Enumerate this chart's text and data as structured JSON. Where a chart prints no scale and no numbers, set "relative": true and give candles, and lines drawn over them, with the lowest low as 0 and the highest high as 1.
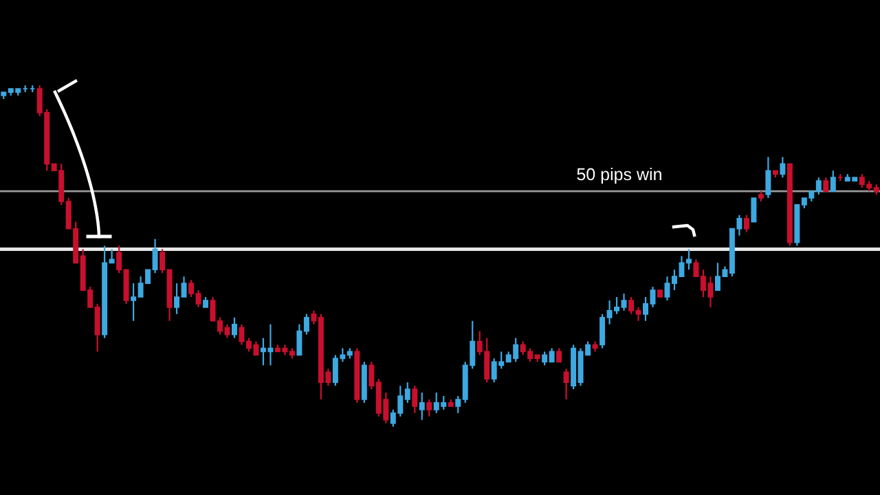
{
  "chart_data": {
    "type": "candlestick",
    "relative": true,
    "categories": [
      null,
      null,
      null,
      null,
      null,
      null,
      null,
      null,
      null,
      null,
      null,
      null,
      null,
      null,
      null,
      null,
      null,
      null,
      null,
      null,
      null,
      null,
      null,
      null,
      null,
      null,
      null,
      null,
      null,
      null,
      null,
      null,
      null,
      null,
      null,
      null,
      null,
      null,
      null,
      null,
      null,
      null,
      null,
      null,
      null,
      null,
      null,
      null,
      null,
      null,
      null,
      null,
      null,
      null,
      null,
      null,
      null,
      null,
      null,
      null,
      null,
      null,
      null,
      null,
      null,
      null,
      null,
      null,
      null,
      null,
      null,
      null,
      null,
      null,
      null,
      null,
      null,
      null,
      null,
      null,
      null,
      null,
      null,
      null,
      null,
      null,
      null,
      null,
      null,
      null,
      null,
      null,
      null,
      null,
      null,
      null,
      null,
      null,
      null,
      null,
      null,
      null,
      null,
      null,
      null,
      null,
      null,
      null,
      null,
      null,
      null,
      null,
      null,
      null,
      null,
      null,
      null,
      null,
      null,
      null,
      null,
      null
    ],
    "ohlc": [
      [
        0.97,
        0.98,
        0.96,
        0.98
      ],
      [
        0.98,
        0.99,
        0.97,
        0.99
      ],
      [
        0.98,
        0.99,
        0.97,
        0.99
      ],
      [
        0.99,
        1.0,
        0.98,
        0.99
      ],
      [
        0.99,
        1.0,
        0.98,
        0.99
      ],
      [
        0.99,
        1.0,
        0.91,
        0.92
      ],
      [
        0.92,
        0.93,
        0.75,
        0.77
      ],
      [
        0.77,
        0.77,
        0.75,
        0.75
      ],
      [
        0.75,
        0.77,
        0.65,
        0.66
      ],
      [
        0.66,
        0.67,
        0.58,
        0.58
      ],
      [
        0.58,
        0.6,
        0.48,
        0.48
      ],
      [
        0.5,
        0.52,
        0.4,
        0.4
      ],
      [
        0.4,
        0.41,
        0.35,
        0.35
      ],
      [
        0.35,
        0.36,
        0.22,
        0.27
      ],
      [
        0.27,
        0.53,
        0.26,
        0.48
      ],
      [
        0.48,
        0.52,
        0.48,
        0.49
      ],
      [
        0.51,
        0.53,
        0.45,
        0.46
      ],
      [
        0.46,
        0.46,
        0.36,
        0.37
      ],
      [
        0.37,
        0.42,
        0.31,
        0.38
      ],
      [
        0.38,
        0.44,
        0.38,
        0.42
      ],
      [
        0.42,
        0.46,
        0.42,
        0.46
      ],
      [
        0.46,
        0.55,
        0.45,
        0.52
      ],
      [
        0.51,
        0.52,
        0.45,
        0.46
      ],
      [
        0.46,
        0.46,
        0.31,
        0.35
      ],
      [
        0.35,
        0.42,
        0.33,
        0.38
      ],
      [
        0.38,
        0.44,
        0.38,
        0.42
      ],
      [
        0.42,
        0.43,
        0.38,
        0.39
      ],
      [
        0.39,
        0.4,
        0.35,
        0.36
      ],
      [
        0.35,
        0.38,
        0.35,
        0.37
      ],
      [
        0.37,
        0.38,
        0.31,
        0.31
      ],
      [
        0.31,
        0.32,
        0.27,
        0.28
      ],
      [
        0.29,
        0.3,
        0.26,
        0.27
      ],
      [
        0.27,
        0.32,
        0.26,
        0.3
      ],
      [
        0.29,
        0.3,
        0.24,
        0.25
      ],
      [
        0.25,
        0.26,
        0.22,
        0.23
      ],
      [
        0.24,
        0.25,
        0.21,
        0.21
      ],
      [
        0.22,
        0.26,
        0.18,
        0.23
      ],
      [
        0.22,
        0.3,
        0.18,
        0.23
      ],
      [
        0.23,
        0.24,
        0.22,
        0.22
      ],
      [
        0.23,
        0.24,
        0.21,
        0.22
      ],
      [
        0.22,
        0.23,
        0.2,
        0.21
      ],
      [
        0.21,
        0.3,
        0.21,
        0.28
      ],
      [
        0.28,
        0.33,
        0.27,
        0.32
      ],
      [
        0.33,
        0.34,
        0.3,
        0.31
      ],
      [
        0.32,
        0.33,
        0.08,
        0.13
      ],
      [
        0.16,
        0.17,
        0.12,
        0.13
      ],
      [
        0.13,
        0.21,
        0.12,
        0.2
      ],
      [
        0.2,
        0.23,
        0.19,
        0.21
      ],
      [
        0.21,
        0.23,
        0.2,
        0.22
      ],
      [
        0.22,
        0.23,
        0.07,
        0.08
      ],
      [
        0.08,
        0.19,
        0.07,
        0.18
      ],
      [
        0.18,
        0.19,
        0.11,
        0.12
      ],
      [
        0.13,
        0.14,
        0.03,
        0.04
      ],
      [
        0.08,
        0.1,
        0.01,
        0.02
      ],
      [
        0.01,
        0.05,
        0.0,
        0.04
      ],
      [
        0.04,
        0.12,
        0.03,
        0.09
      ],
      [
        0.08,
        0.13,
        0.07,
        0.11
      ],
      [
        0.11,
        0.12,
        0.04,
        0.06
      ],
      [
        0.05,
        0.1,
        0.02,
        0.07
      ],
      [
        0.07,
        0.08,
        0.03,
        0.05
      ],
      [
        0.05,
        0.1,
        0.04,
        0.07
      ],
      [
        0.06,
        0.09,
        0.05,
        0.07
      ],
      [
        0.07,
        0.08,
        0.06,
        0.06
      ],
      [
        0.06,
        0.09,
        0.04,
        0.08
      ],
      [
        0.08,
        0.19,
        0.07,
        0.18
      ],
      [
        0.18,
        0.31,
        0.17,
        0.25
      ],
      [
        0.25,
        0.28,
        0.21,
        0.22
      ],
      [
        0.22,
        0.26,
        0.13,
        0.14
      ],
      [
        0.14,
        0.2,
        0.13,
        0.19
      ],
      [
        0.18,
        0.22,
        0.17,
        0.19
      ],
      [
        0.19,
        0.22,
        0.19,
        0.21
      ],
      [
        0.2,
        0.26,
        0.19,
        0.24
      ],
      [
        0.24,
        0.25,
        0.21,
        0.22
      ],
      [
        0.22,
        0.23,
        0.19,
        0.2
      ],
      [
        0.21,
        0.21,
        0.19,
        0.2
      ],
      [
        0.19,
        0.22,
        0.18,
        0.21
      ],
      [
        0.19,
        0.23,
        0.19,
        0.22
      ],
      [
        0.22,
        0.23,
        0.19,
        0.19
      ],
      [
        0.16,
        0.17,
        0.08,
        0.13
      ],
      [
        0.12,
        0.24,
        0.11,
        0.23
      ],
      [
        0.13,
        0.23,
        0.12,
        0.22
      ],
      [
        0.21,
        0.25,
        0.21,
        0.24
      ],
      [
        0.24,
        0.25,
        0.22,
        0.23
      ],
      [
        0.24,
        0.33,
        0.23,
        0.32
      ],
      [
        0.32,
        0.37,
        0.3,
        0.34
      ],
      [
        0.34,
        0.38,
        0.33,
        0.35
      ],
      [
        0.35,
        0.39,
        0.34,
        0.37
      ],
      [
        0.37,
        0.38,
        0.33,
        0.34
      ],
      [
        0.34,
        0.35,
        0.31,
        0.33
      ],
      [
        0.33,
        0.38,
        0.31,
        0.36
      ],
      [
        0.36,
        0.41,
        0.35,
        0.4
      ],
      [
        0.4,
        0.4,
        0.38,
        0.38
      ],
      [
        0.38,
        0.44,
        0.37,
        0.42
      ],
      [
        0.42,
        0.46,
        0.4,
        0.44
      ],
      [
        0.44,
        0.5,
        0.44,
        0.48
      ],
      [
        0.48,
        0.52,
        0.46,
        0.49
      ],
      [
        0.48,
        0.49,
        0.44,
        0.44
      ],
      [
        0.44,
        0.46,
        0.38,
        0.4
      ],
      [
        0.42,
        0.44,
        0.35,
        0.38
      ],
      [
        0.4,
        0.48,
        0.4,
        0.44
      ],
      [
        0.44,
        0.47,
        0.44,
        0.46
      ],
      [
        0.45,
        0.58,
        0.44,
        0.58
      ],
      [
        0.58,
        0.62,
        0.56,
        0.61
      ],
      [
        0.61,
        0.62,
        0.57,
        0.58
      ],
      [
        0.6,
        0.67,
        0.6,
        0.67
      ],
      [
        0.68,
        0.69,
        0.66,
        0.67
      ],
      [
        0.68,
        0.79,
        0.67,
        0.75
      ],
      [
        0.75,
        0.75,
        0.73,
        0.74
      ],
      [
        0.74,
        0.79,
        0.73,
        0.77
      ],
      [
        0.77,
        0.77,
        0.53,
        0.54
      ],
      [
        0.54,
        0.65,
        0.53,
        0.65
      ],
      [
        0.65,
        0.67,
        0.64,
        0.67
      ],
      [
        0.67,
        0.69,
        0.66,
        0.69
      ],
      [
        0.69,
        0.73,
        0.68,
        0.72
      ],
      [
        0.72,
        0.73,
        0.69,
        0.69
      ],
      [
        0.69,
        0.75,
        0.69,
        0.73
      ],
      [
        0.73,
        0.74,
        0.72,
        0.73
      ],
      [
        0.72,
        0.74,
        0.72,
        0.73
      ],
      [
        0.72,
        0.73,
        0.72,
        0.73
      ],
      [
        0.73,
        0.74,
        0.7,
        0.71
      ],
      [
        0.71,
        0.72,
        0.69,
        0.7
      ],
      [
        0.7,
        0.71,
        0.68,
        0.69
      ]
    ],
    "colors": [
      "#3ea8e0",
      "#3ea8e0",
      "#3ea8e0",
      "#3ea8e0",
      "#3ea8e0",
      "#c8102e",
      "#c8102e",
      "#c8102e",
      "#c8102e",
      "#c8102e",
      "#c8102e",
      "#c8102e",
      "#c8102e",
      "#c8102e",
      "#3ea8e0",
      "#3ea8e0",
      "#c8102e",
      "#c8102e",
      "#3ea8e0",
      "#3ea8e0",
      "#3ea8e0",
      "#3ea8e0",
      "#c8102e",
      "#c8102e",
      "#3ea8e0",
      "#3ea8e0",
      "#c8102e",
      "#c8102e",
      "#3ea8e0",
      "#c8102e",
      "#c8102e",
      "#c8102e",
      "#3ea8e0",
      "#c8102e",
      "#c8102e",
      "#c8102e",
      "#3ea8e0",
      "#3ea8e0",
      "#c8102e",
      "#c8102e",
      "#c8102e",
      "#3ea8e0",
      "#3ea8e0",
      "#c8102e",
      "#c8102e",
      "#c8102e",
      "#3ea8e0",
      "#3ea8e0",
      "#3ea8e0",
      "#c8102e",
      "#3ea8e0",
      "#c8102e",
      "#c8102e",
      "#c8102e",
      "#3ea8e0",
      "#3ea8e0",
      "#3ea8e0",
      "#c8102e",
      "#3ea8e0",
      "#c8102e",
      "#3ea8e0",
      "#3ea8e0",
      "#c8102e",
      "#3ea8e0",
      "#3ea8e0",
      "#3ea8e0",
      "#c8102e",
      "#c8102e",
      "#3ea8e0",
      "#3ea8e0",
      "#3ea8e0",
      "#3ea8e0",
      "#c8102e",
      "#c8102e",
      "#c8102e",
      "#3ea8e0",
      "#3ea8e0",
      "#c8102e",
      "#c8102e",
      "#3ea8e0",
      "#3ea8e0",
      "#3ea8e0",
      "#c8102e",
      "#3ea8e0",
      "#3ea8e0",
      "#3ea8e0",
      "#3ea8e0",
      "#c8102e",
      "#c8102e",
      "#3ea8e0",
      "#3ea8e0",
      "#c8102e",
      "#3ea8e0",
      "#3ea8e0",
      "#3ea8e0",
      "#3ea8e0",
      "#c8102e",
      "#c8102e",
      "#c8102e",
      "#3ea8e0",
      "#3ea8e0",
      "#3ea8e0",
      "#3ea8e0",
      "#c8102e",
      "#3ea8e0",
      "#c8102e",
      "#3ea8e0",
      "#c8102e",
      "#3ea8e0",
      "#c8102e",
      "#3ea8e0",
      "#3ea8e0",
      "#3ea8e0",
      "#3ea8e0",
      "#c8102e",
      "#3ea8e0",
      "#c8102e",
      "#3ea8e0",
      "#3ea8e0",
      "#c8102e",
      "#c8102e",
      "#c8102e"
    ],
    "ref_lines": [
      {
        "axis": "y",
        "value": 0.69,
        "color": "#9a9a9a"
      },
      {
        "axis": "y",
        "value": 0.52,
        "color": "#e6e6e6"
      }
    ],
    "annotations": [
      "50 pips win"
    ]
  }
}
